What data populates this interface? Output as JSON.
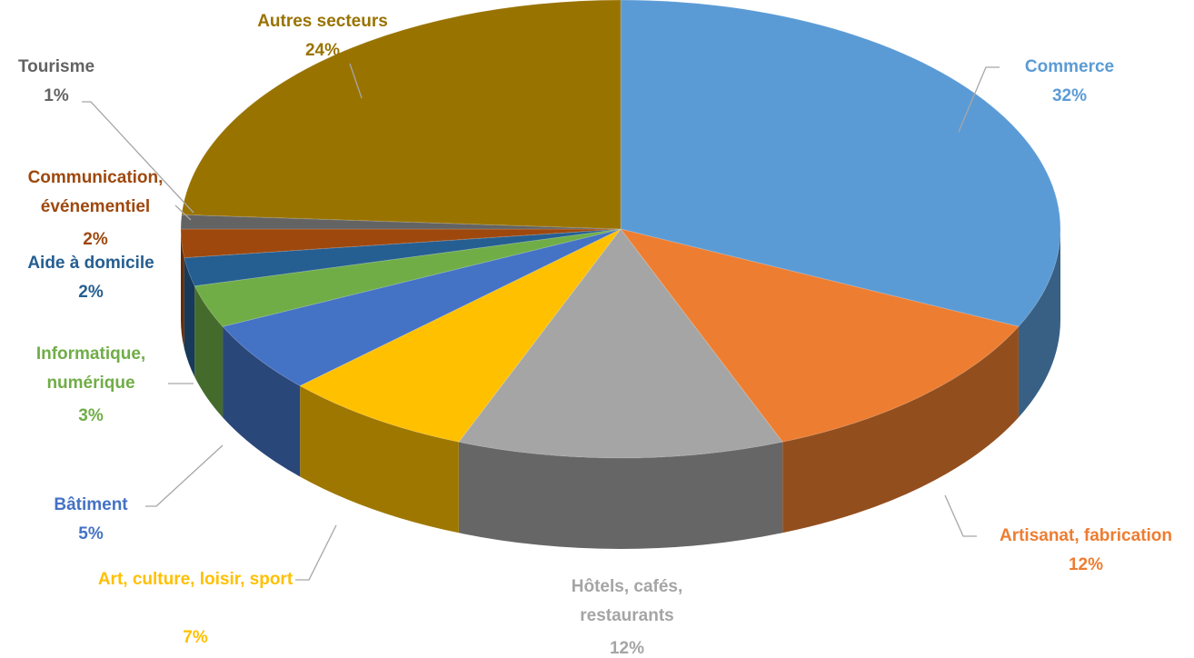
{
  "chart_data": {
    "type": "pie",
    "categories": [
      "Commerce",
      "Artisanat, fabrication",
      "Hôtels, cafés, restaurants",
      "Art, culture, loisir, sport",
      "Bâtiment",
      "Informatique, numérique",
      "Aide à domicile",
      "Communication, événementiel",
      "Tourisme",
      "Autres secteurs"
    ],
    "values": [
      32,
      12,
      12,
      7,
      5,
      3,
      2,
      2,
      1,
      24
    ],
    "value_labels": [
      "32%",
      "12%",
      "12%",
      "7%",
      "5%",
      "3%",
      "2%",
      "2%",
      "1%",
      "24%"
    ],
    "colors": [
      "#5b9bd5",
      "#ed7d31",
      "#a5a5a5",
      "#ffc000",
      "#4472c4",
      "#70ad47",
      "#255e91",
      "#9e480e",
      "#636363",
      "#997300"
    ]
  }
}
